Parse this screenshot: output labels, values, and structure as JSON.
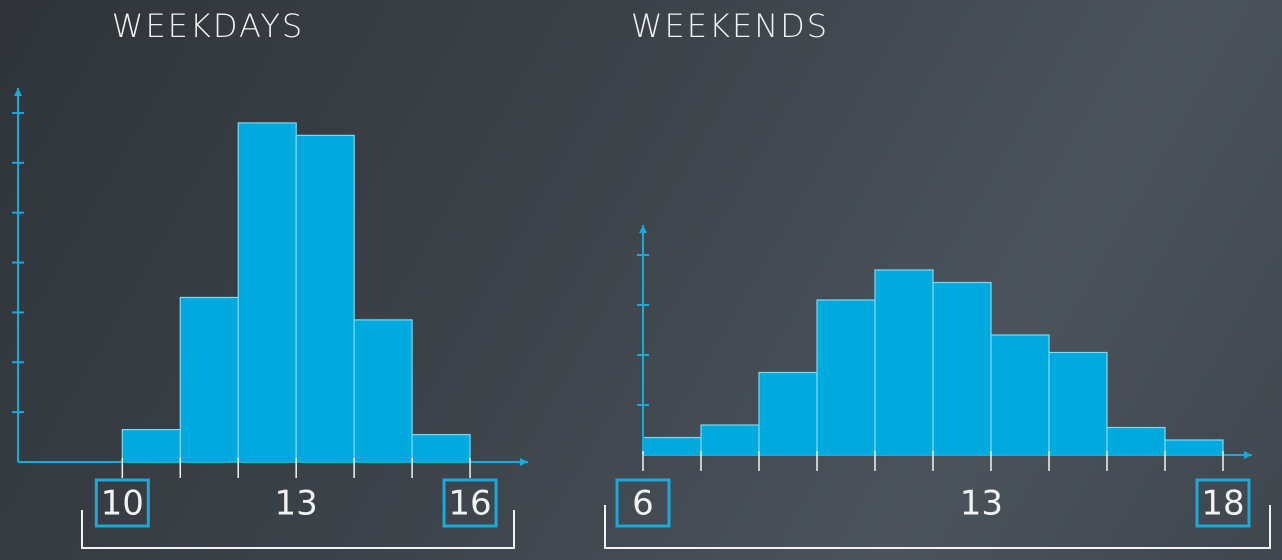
{
  "chart_data": [
    {
      "type": "histogram",
      "title": "WEEKDAYS",
      "bins": [
        10,
        11,
        12,
        13,
        14,
        15,
        16
      ],
      "values": [
        0.65,
        3.3,
        6.8,
        6.55,
        2.85,
        0.55
      ],
      "color": "#00aade",
      "xlim": [
        8.2,
        17
      ],
      "xticks": [
        10,
        13,
        16
      ],
      "ylim": [
        0,
        7.5
      ],
      "yticks": [
        1,
        2,
        3,
        4,
        5,
        6,
        7
      ]
    },
    {
      "type": "histogram",
      "title": "WEEKENDS",
      "bins": [
        6,
        7.2,
        8.4,
        9.6,
        10.8,
        12,
        13.2,
        14.4,
        15.6,
        16.8,
        18
      ],
      "values": [
        0.35,
        0.6,
        1.65,
        3.1,
        3.7,
        3.45,
        2.4,
        2.05,
        0.55,
        0.3
      ],
      "color": "#00aade",
      "xlim": [
        6,
        18.6
      ],
      "xticks": [
        6,
        13,
        18
      ],
      "ylim": [
        0,
        4.6
      ],
      "yticks": [
        1,
        2,
        3,
        4
      ]
    }
  ]
}
